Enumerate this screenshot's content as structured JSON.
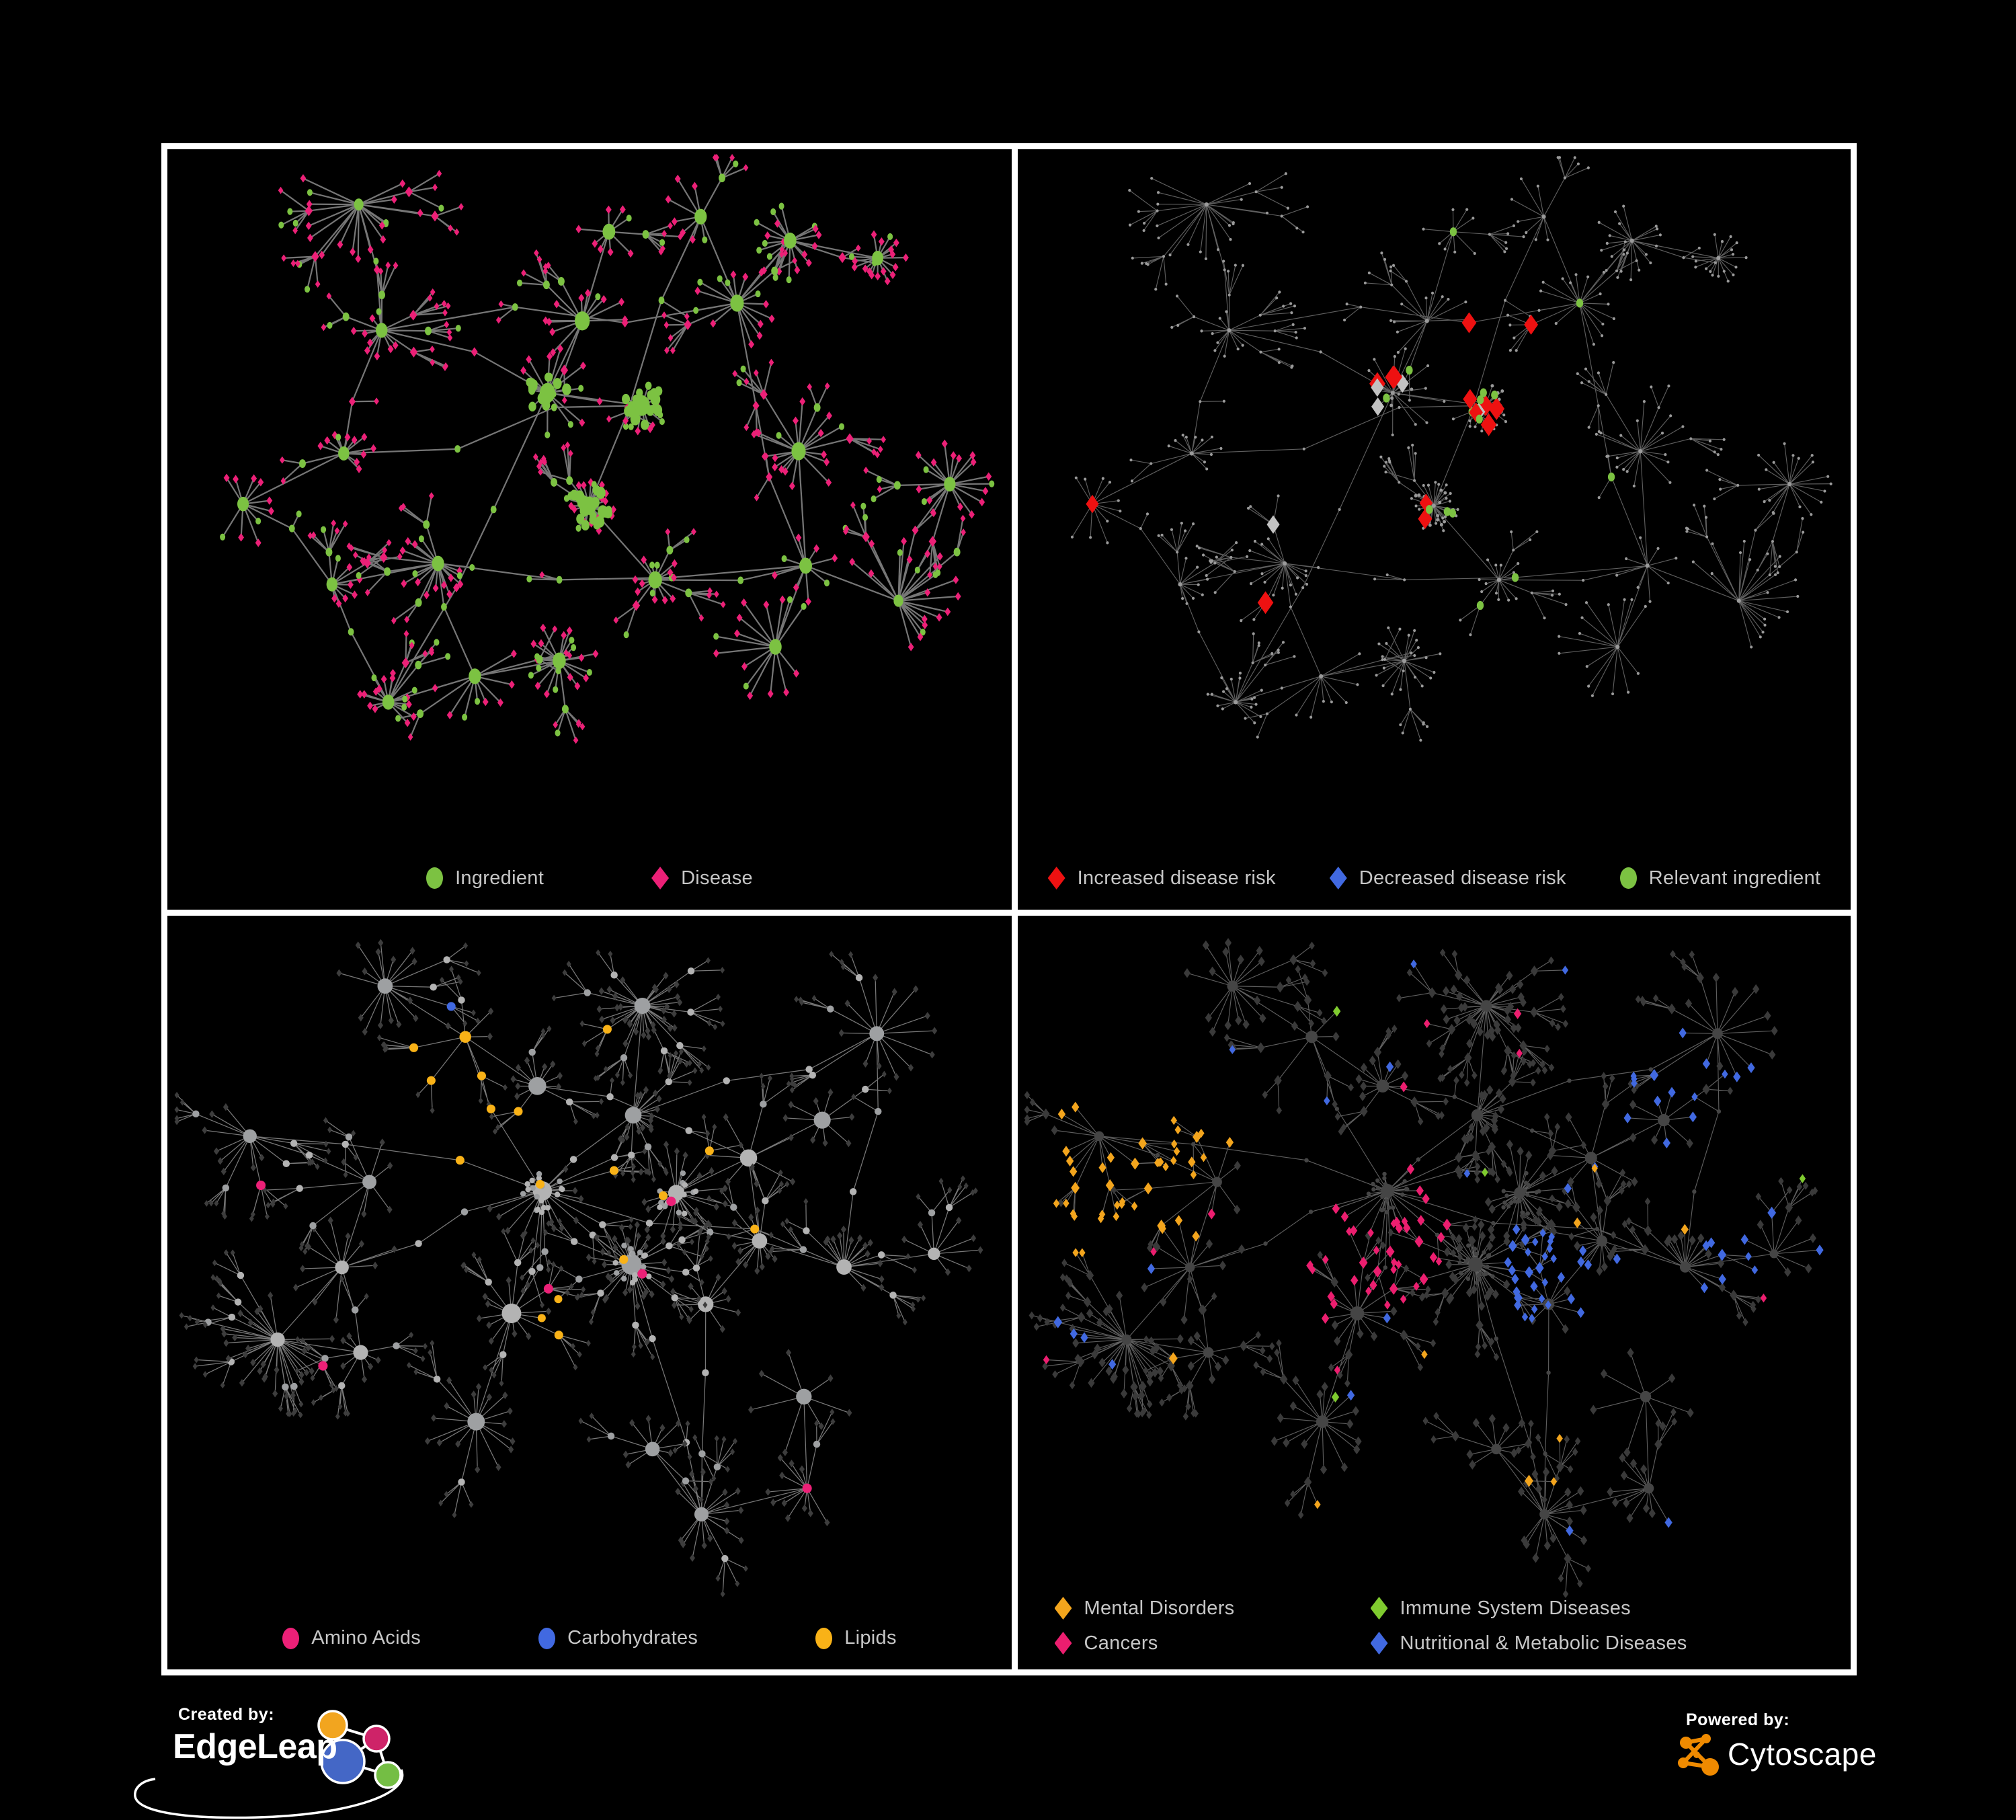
{
  "page": {
    "background": "#000000",
    "panel_border": "#FFFFFF",
    "legend_text_color": "#C7C7C7"
  },
  "panels": {
    "top_left": {
      "legend": {
        "items": [
          {
            "label": "Ingredient",
            "shape": "ellipse",
            "color": "#7CC242"
          },
          {
            "label": "Disease",
            "shape": "diamond",
            "color": "#EC2077"
          }
        ]
      },
      "style": {
        "edge_color": "#8B8B8B",
        "edge_width": 2.2,
        "ingredient_color": "#7CC242",
        "disease_color": "#EC2077"
      }
    },
    "top_right": {
      "legend": {
        "items": [
          {
            "label": "Increased disease risk",
            "shape": "diamond",
            "color": "#EE1111"
          },
          {
            "label": "Decreased disease risk",
            "shape": "diamond",
            "color": "#4169E1"
          },
          {
            "label": "Relevant ingredient",
            "shape": "ellipse",
            "color": "#7CC242"
          }
        ]
      },
      "style": {
        "edge_color": "#6F6F6F",
        "edge_width": 1.15,
        "base_node_color": "#9A9A9A",
        "increased_color": "#EE1111",
        "decreased_color": "#4169E1",
        "neutral_color": "#C2C2C2",
        "ingredient_color": "#7CC242"
      }
    },
    "bottom_left": {
      "legend": {
        "items": [
          {
            "label": "Amino Acids",
            "shape": "ellipse",
            "color": "#EC2077"
          },
          {
            "label": "Carbohydrates",
            "shape": "ellipse",
            "color": "#4169E1"
          },
          {
            "label": "Lipids",
            "shape": "ellipse",
            "color": "#F9B217"
          }
        ]
      },
      "style": {
        "edge_color": "#8D8D8D",
        "edge_width": 1.25,
        "node_color": "#A8A8A8",
        "leaf_color": "#3D3D3D",
        "amino_color": "#EC2077",
        "carbohydrate_color": "#4169E1",
        "lipid_color": "#F9B217"
      }
    },
    "bottom_right": {
      "legend": {
        "items": [
          {
            "label": "Mental Disorders",
            "shape": "diamond",
            "color": "#F3A51D"
          },
          {
            "label": "Immune System Diseases",
            "shape": "diamond",
            "color": "#7FCB2F"
          },
          {
            "label": "Cancers",
            "shape": "diamond",
            "color": "#EC1E6F"
          },
          {
            "label": "Nutritional & Metabolic Diseases",
            "shape": "diamond",
            "color": "#4169E1"
          }
        ]
      },
      "style": {
        "edge_color": "#6F6F6F",
        "edge_width": 1.15,
        "node_color": "#454545",
        "leaf_color": "#3A3A3A",
        "mental_color": "#F3A51D",
        "immune_color": "#7FCB2F",
        "cancer_color": "#EC1E6F",
        "nutritional_color": "#4169E1"
      }
    }
  },
  "footer": {
    "created_by_label": "Created by:",
    "created_by_brand": "EdgeLeap",
    "powered_by_label": "Powered by:",
    "powered_by_brand": "Cytoscape",
    "edgeleap_logo_colors": {
      "orange": "#F2A51F",
      "pink": "#CE2368",
      "blue": "#4467C6",
      "green": "#74BE44"
    },
    "cytoscape_color": "#EF8A00"
  }
}
